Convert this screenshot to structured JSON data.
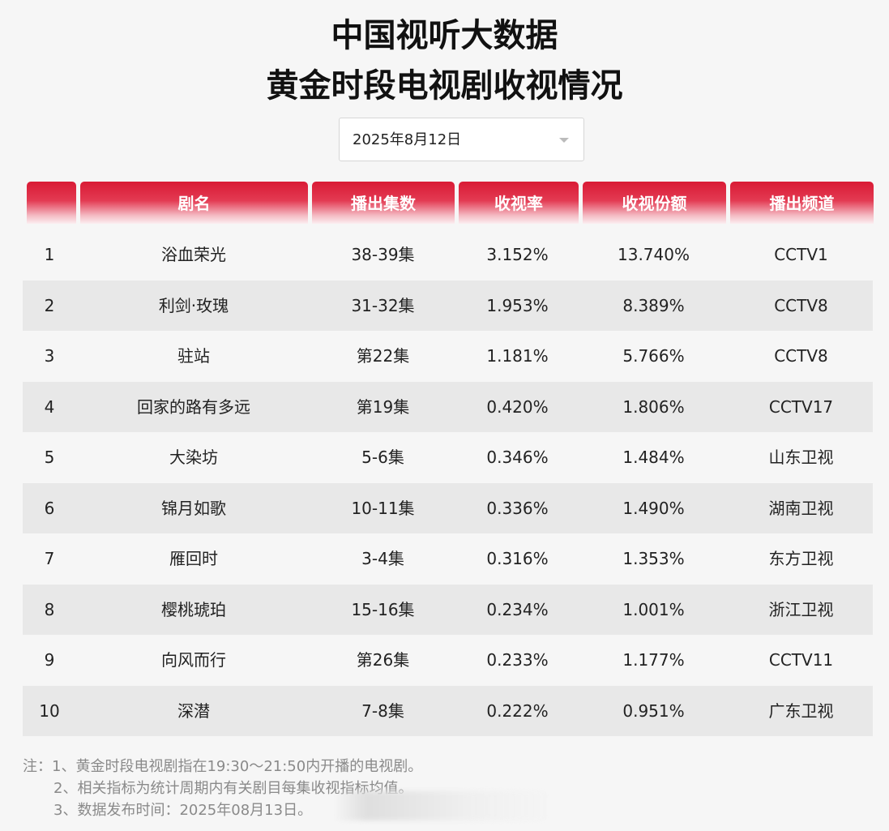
{
  "title_line1": "中国视听大数据",
  "title_line2": "黄金时段电视剧收视情况",
  "date_select": {
    "value": "2025年8月12日"
  },
  "columns": [
    "",
    "剧名",
    "播出集数",
    "收视率",
    "收视份额",
    "播出频道"
  ],
  "rows": [
    {
      "rank": "1",
      "name": "浴血荣光",
      "episodes": "38-39集",
      "rating": "3.152%",
      "share": "13.740%",
      "channel": "CCTV1"
    },
    {
      "rank": "2",
      "name": "利剑·玫瑰",
      "episodes": "31-32集",
      "rating": "1.953%",
      "share": "8.389%",
      "channel": "CCTV8"
    },
    {
      "rank": "3",
      "name": "驻站",
      "episodes": "第22集",
      "rating": "1.181%",
      "share": "5.766%",
      "channel": "CCTV8"
    },
    {
      "rank": "4",
      "name": "回家的路有多远",
      "episodes": "第19集",
      "rating": "0.420%",
      "share": "1.806%",
      "channel": "CCTV17"
    },
    {
      "rank": "5",
      "name": "大染坊",
      "episodes": "5-6集",
      "rating": "0.346%",
      "share": "1.484%",
      "channel": "山东卫视"
    },
    {
      "rank": "6",
      "name": "锦月如歌",
      "episodes": "10-11集",
      "rating": "0.336%",
      "share": "1.490%",
      "channel": "湖南卫视"
    },
    {
      "rank": "7",
      "name": "雁回时",
      "episodes": "3-4集",
      "rating": "0.316%",
      "share": "1.353%",
      "channel": "东方卫视"
    },
    {
      "rank": "8",
      "name": "樱桃琥珀",
      "episodes": "15-16集",
      "rating": "0.234%",
      "share": "1.001%",
      "channel": "浙江卫视"
    },
    {
      "rank": "9",
      "name": "向风而行",
      "episodes": "第26集",
      "rating": "0.233%",
      "share": "1.177%",
      "channel": "CCTV11"
    },
    {
      "rank": "10",
      "name": "深潜",
      "episodes": "7-8集",
      "rating": "0.222%",
      "share": "0.951%",
      "channel": "广东卫视"
    }
  ],
  "notes": [
    "注：1、黄金时段电视剧指在19:30～21:50内开播的电视剧。",
    "2、相关指标为统计周期内有关剧目每集收视指标均值。",
    "3、数据发布时间：2025年08月13日。"
  ],
  "colors": {
    "header_red": "#d91a35",
    "row_alt": "#e8e8e8",
    "background": "#f6f6f6"
  }
}
